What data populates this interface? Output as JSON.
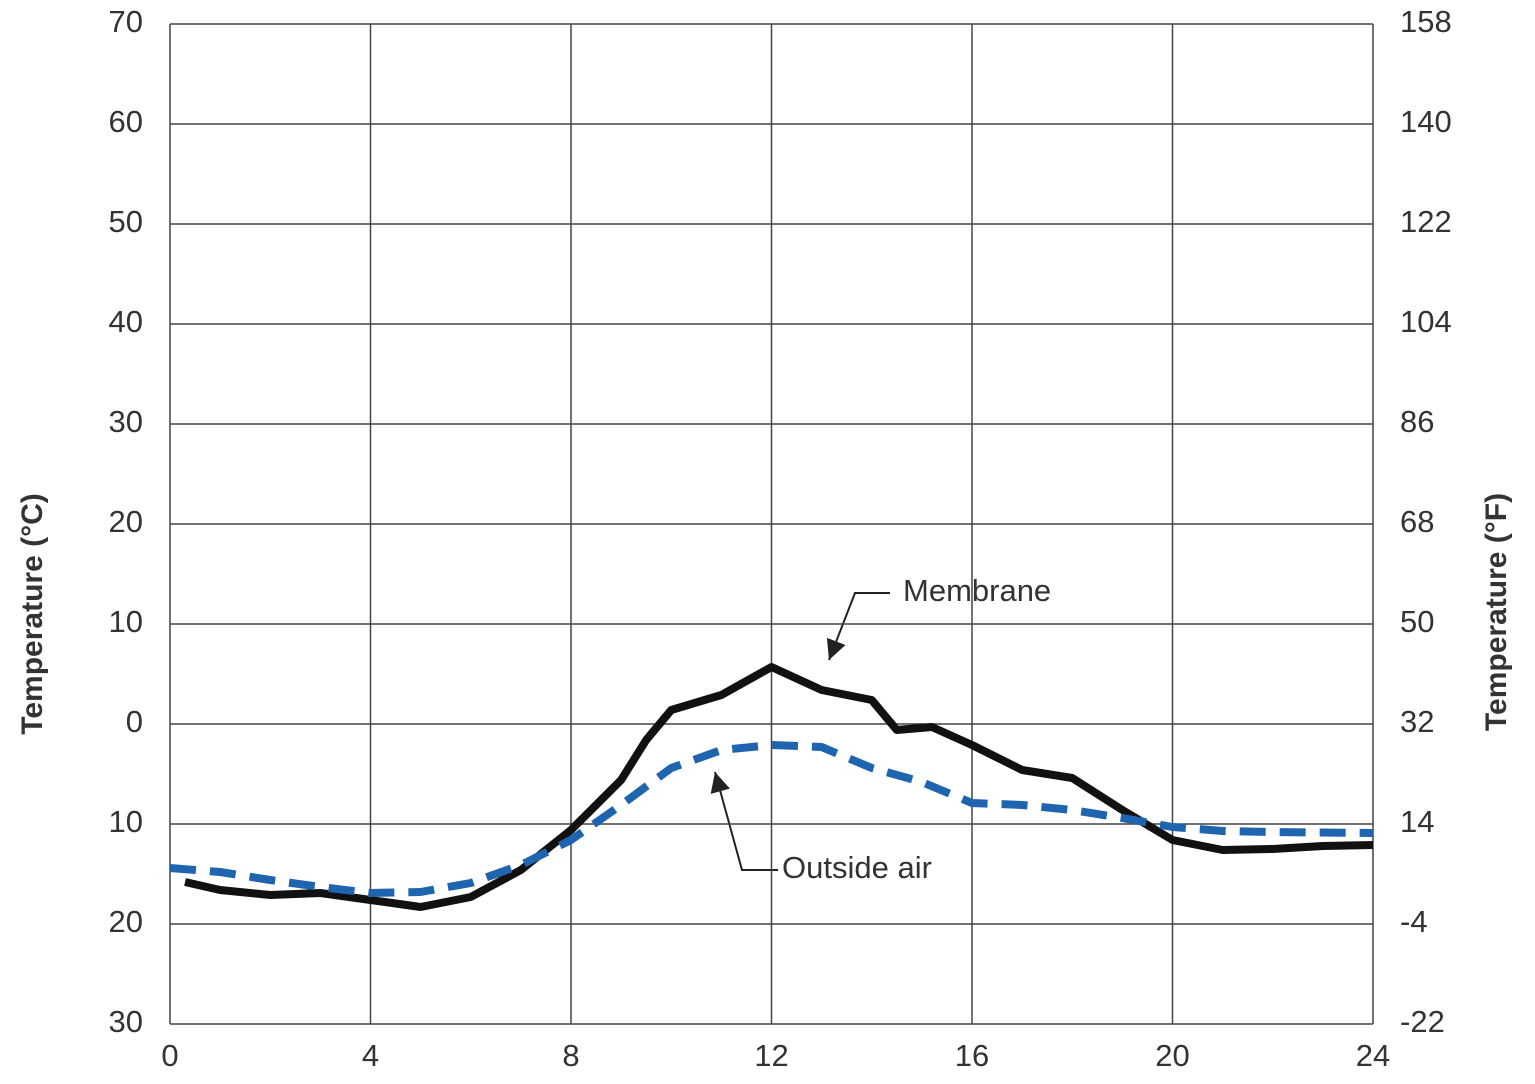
{
  "chart_data": {
    "type": "line",
    "ylabel": "Temperature (°C)",
    "y2label": "Temperature (°F)",
    "xlim": [
      0,
      24
    ],
    "xticks": [
      0,
      4,
      8,
      12,
      16,
      20,
      24
    ],
    "ylim": [
      -30,
      70
    ],
    "yticks": [
      {
        "value": -30,
        "label": "30"
      },
      {
        "value": -20,
        "label": "20"
      },
      {
        "value": -10,
        "label": "10"
      },
      0,
      10,
      20,
      30,
      40,
      50,
      60,
      70
    ],
    "y2lim": [
      -22,
      158
    ],
    "y2ticks": [
      -22,
      -4,
      14,
      32,
      50,
      68,
      86,
      104,
      122,
      140,
      158
    ],
    "grid": true,
    "series": [
      {
        "name": "Membrane",
        "color": "#111111",
        "dashed": false,
        "x": [
          0.3,
          1,
          2,
          3,
          4,
          5,
          6,
          7,
          8,
          9,
          9.5,
          10,
          11,
          12,
          13,
          14,
          14.5,
          15.2,
          16,
          17,
          18,
          19,
          20,
          21,
          22,
          23,
          24
        ],
        "values": [
          -15.8,
          -16.6,
          -17.1,
          -16.9,
          -17.6,
          -18.3,
          -17.3,
          -14.6,
          -10.6,
          -5.6,
          -1.6,
          1.4,
          2.9,
          5.7,
          3.4,
          2.4,
          -0.6,
          -0.3,
          -2.1,
          -4.6,
          -5.4,
          -8.6,
          -11.6,
          -12.6,
          -12.5,
          -12.2,
          -12.1
        ]
      },
      {
        "name": "Outside air",
        "color": "#1f64ae",
        "dashed": true,
        "x": [
          0,
          1,
          2,
          3,
          4,
          5,
          6,
          7,
          8,
          9,
          10,
          11,
          12,
          13,
          14,
          15,
          16,
          17,
          18,
          19,
          20,
          21,
          22,
          24
        ],
        "values": [
          -14.4,
          -14.8,
          -15.6,
          -16.3,
          -16.9,
          -16.8,
          -15.9,
          -14.1,
          -11.6,
          -8.1,
          -4.4,
          -2.6,
          -2.1,
          -2.3,
          -4.4,
          -5.8,
          -7.9,
          -8.1,
          -8.6,
          -9.4,
          -10.3,
          -10.7,
          -10.8,
          -10.9
        ]
      }
    ]
  }
}
